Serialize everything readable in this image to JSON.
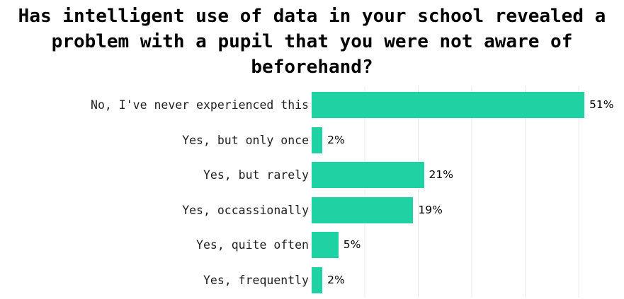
{
  "chart": {
    "title_lines": [
      "Has intelligent use of data in your school revealed a",
      "problem with a pupil that you were not aware of",
      "beforehand?"
    ]
  },
  "chart_data": {
    "type": "bar",
    "orientation": "horizontal",
    "title": "Has intelligent use of data in your school revealed a problem with a pupil that you were not aware of beforehand?",
    "categories": [
      "No, I've never experienced this",
      "Yes, but only once",
      "Yes, but rarely",
      "Yes, occassionally",
      "Yes, quite often",
      "Yes, frequently"
    ],
    "values": [
      51,
      2,
      21,
      19,
      5,
      2
    ],
    "data_labels": [
      "51%",
      "2%",
      "21%",
      "19%",
      "5%",
      "2%"
    ],
    "xlabel": "",
    "ylabel": "",
    "xlim": [
      0,
      58
    ],
    "gridlines": {
      "axis": "x",
      "interval": 10,
      "visible_at": [
        10,
        20,
        30,
        40,
        50
      ],
      "color": "#ebebee"
    },
    "legend": "none",
    "bar_color": "#1fd2a4",
    "label_color": "#1e1e1e",
    "value_label_color": "#000000"
  }
}
